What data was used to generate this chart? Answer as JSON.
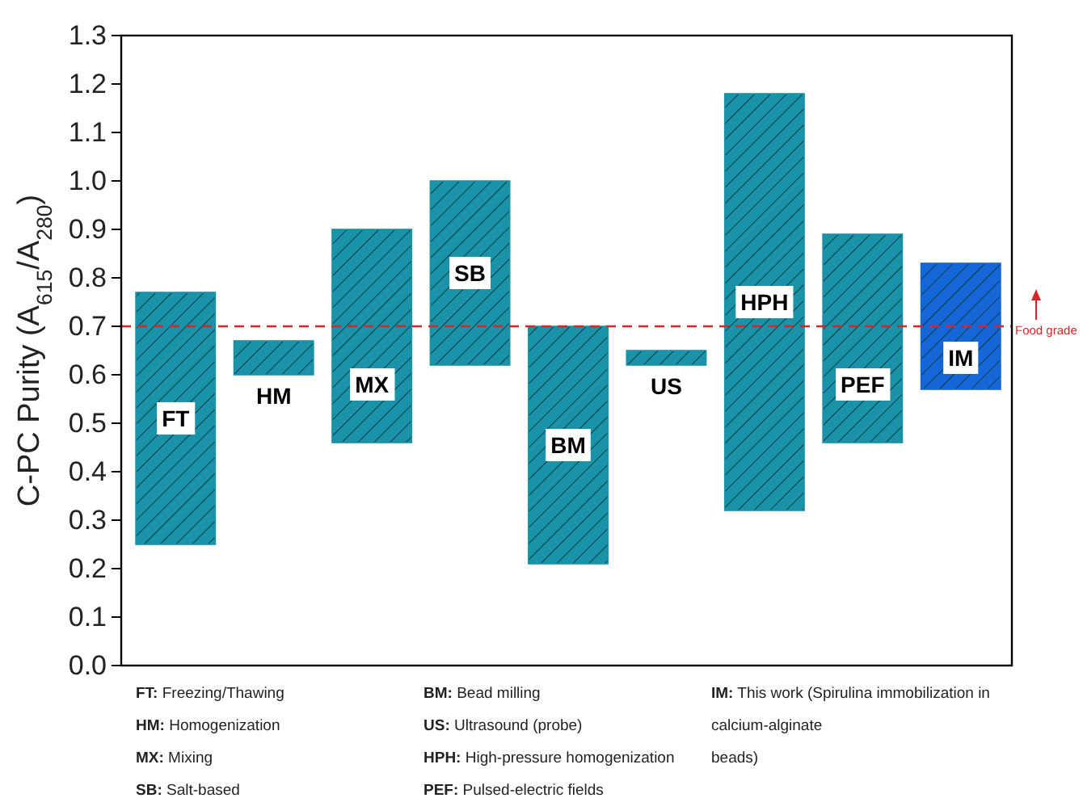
{
  "chart_data": {
    "type": "bar",
    "ylabel": "C-PC Purity (A$_{615}$/A$_{280}$)",
    "categories": [
      "FT",
      "HM",
      "MX",
      "SB",
      "BM",
      "US",
      "HPH",
      "PEF",
      "IM"
    ],
    "base": [
      0.25,
      0.6,
      0.46,
      0.62,
      0.21,
      0.62,
      0.32,
      0.46,
      0.57
    ],
    "values": [
      0.52,
      0.07,
      0.44,
      0.38,
      0.49,
      0.03,
      0.86,
      0.43,
      0.26
    ],
    "colors": [
      "#1a93a8",
      "#1a93a8",
      "#1a93a8",
      "#1a93a8",
      "#1a93a8",
      "#1a93a8",
      "#1a93a8",
      "#1a93a8",
      "#1566d6"
    ],
    "ylim": [
      0,
      1.3
    ],
    "yticks": [
      {
        "value": 0,
        "label": "0.0"
      },
      0.1,
      0.2,
      0.3,
      0.4,
      0.5,
      0.6,
      0.7,
      0.8,
      0.9,
      {
        "value": 1,
        "label": "1.0"
      },
      1.1,
      1.2,
      1.3
    ],
    "grid": false,
    "ref_lines": [
      {
        "axis": "y",
        "value": 0.7,
        "label": "Food grade",
        "color": "#d62728",
        "line_style": "dashed"
      }
    ],
    "annotations": [
      "FT: Freezing/Thawing",
      "HM: Homogenization",
      "MX: Mixing",
      "SB: Salt-based",
      "BM: Bead milling",
      "US: Ultrasound (probe)",
      "HPH: High-pressure homogenization",
      "PEF: Pulsed-electric fields",
      "IM: This work (Spirulina immobilization in calcium-alginate beads)"
    ]
  }
}
